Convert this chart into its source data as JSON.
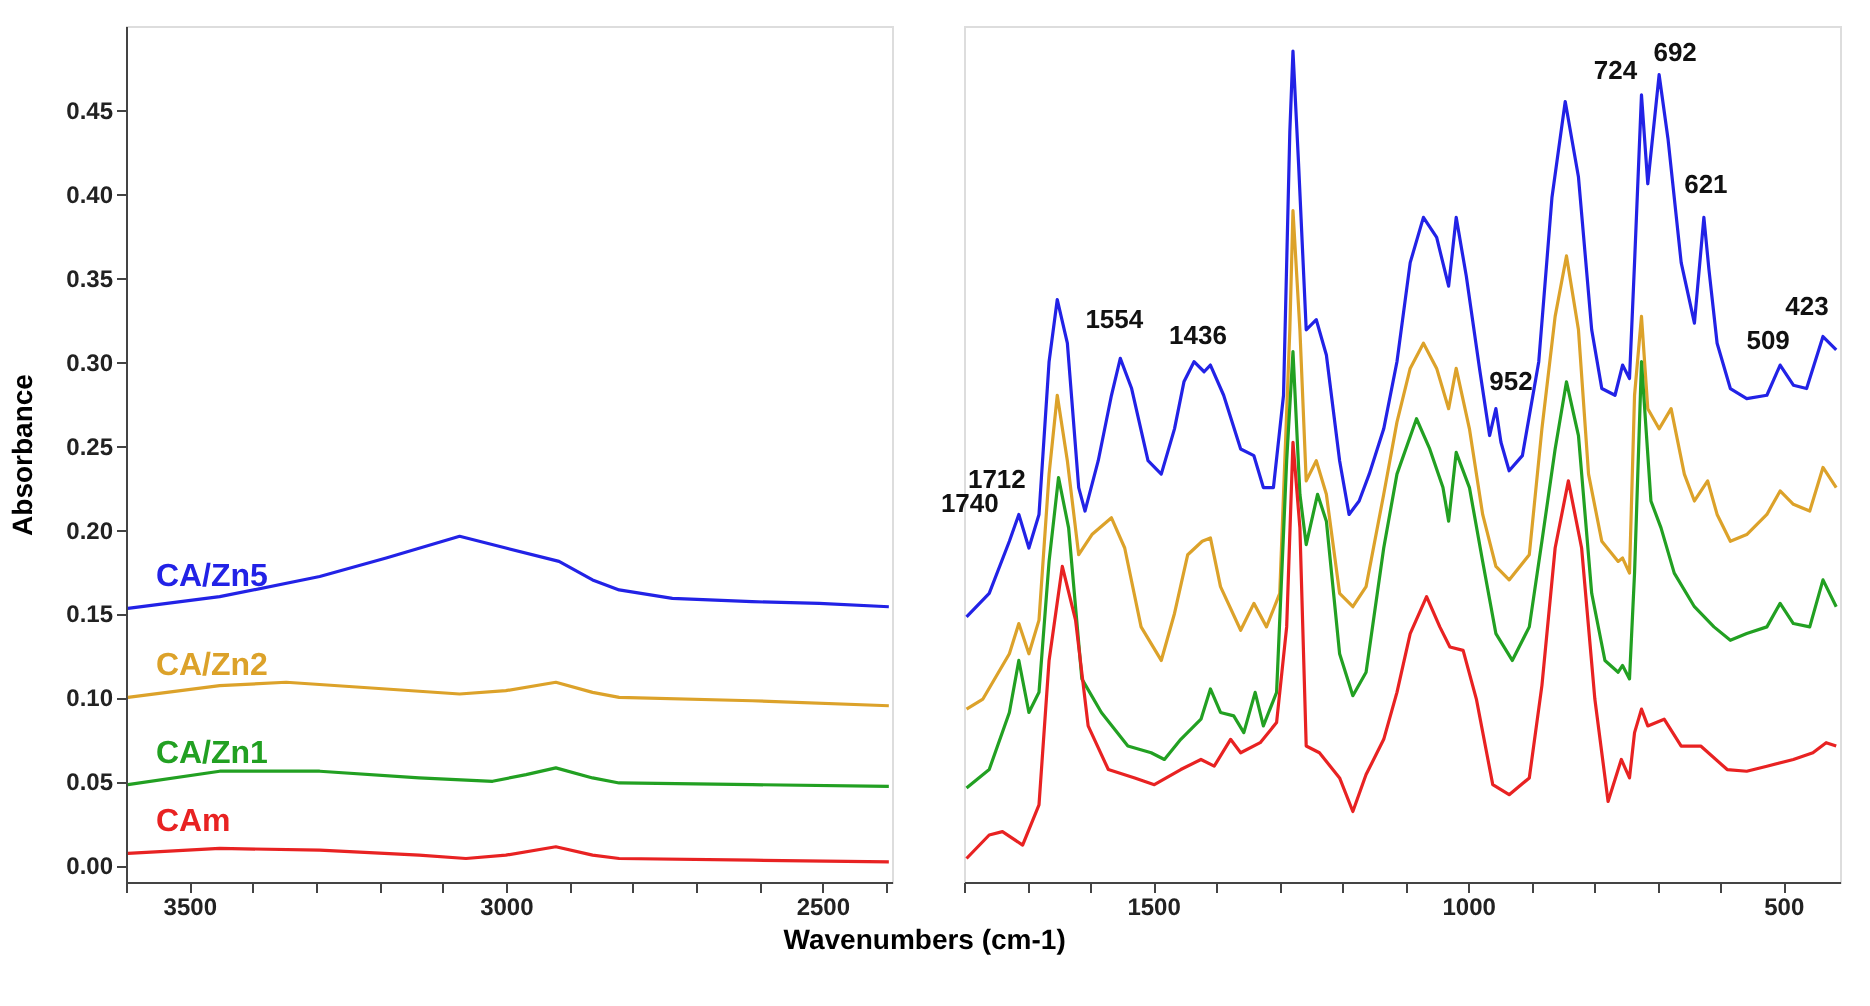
{
  "chart_data": [
    {
      "type": "line",
      "ylabel": "Absorbance",
      "xlabel": "Wavenumbers (cm-1)",
      "xlim": [
        3600,
        2390
      ],
      "xticks": [
        {
          "value": 3600,
          "label": null
        },
        {
          "value": 3500,
          "label": "3500"
        },
        {
          "value": 3400,
          "label": null
        },
        {
          "value": 3300,
          "label": null
        },
        {
          "value": 3200,
          "label": null
        },
        {
          "value": 3100,
          "label": null
        },
        {
          "value": 3000,
          "label": "3000"
        },
        {
          "value": 2900,
          "label": null
        },
        {
          "value": 2800,
          "label": null
        },
        {
          "value": 2700,
          "label": null
        },
        {
          "value": 2600,
          "label": null
        },
        {
          "value": 2500,
          "label": "2500"
        },
        {
          "value": 2400,
          "label": null
        }
      ],
      "ylim": [
        -0.01,
        0.5
      ],
      "yticks": [
        {
          "value": 0,
          "label": "0.00"
        },
        {
          "value": 0.05,
          "label": "0.05"
        },
        {
          "value": 0.1,
          "label": "0.10"
        },
        {
          "value": 0.15,
          "label": "0.15"
        },
        {
          "value": 0.2,
          "label": "0.20"
        },
        {
          "value": 0.25,
          "label": "0.25"
        },
        {
          "value": 0.3,
          "label": "0.30"
        },
        {
          "value": 0.35,
          "label": "0.35"
        },
        {
          "value": 0.4,
          "label": "0.40"
        },
        {
          "value": 0.45,
          "label": "0.45"
        }
      ],
      "grid": false,
      "legend": false,
      "series": [
        {
          "name": "CA/Zn5",
          "color": "#2222e6",
          "x": [
            3597,
            3452,
            3294,
            3189,
            3073,
            3000,
            2916,
            2863,
            2821,
            2737,
            2611,
            2505,
            2395
          ],
          "values": [
            0.153,
            0.16,
            0.172,
            0.183,
            0.196,
            0.189,
            0.181,
            0.17,
            0.164,
            0.159,
            0.157,
            0.156,
            0.154
          ]
        },
        {
          "name": "CA/Zn2",
          "color": "#dca22a",
          "x": [
            3597,
            3452,
            3347,
            3189,
            3073,
            3000,
            2921,
            2863,
            2821,
            2611,
            2395
          ],
          "values": [
            0.1,
            0.107,
            0.109,
            0.105,
            0.102,
            0.104,
            0.109,
            0.103,
            0.1,
            0.098,
            0.095
          ]
        },
        {
          "name": "CA/Zn1",
          "color": "#22a022",
          "x": [
            3597,
            3452,
            3294,
            3137,
            3021,
            2968,
            2921,
            2863,
            2821,
            2611,
            2395
          ],
          "values": [
            0.048,
            0.056,
            0.056,
            0.052,
            0.05,
            0.054,
            0.058,
            0.052,
            0.049,
            0.048,
            0.047
          ]
        },
        {
          "name": "CAm",
          "color": "#e82222",
          "x": [
            3597,
            3452,
            3294,
            3137,
            3063,
            3000,
            2921,
            2863,
            2821,
            2611,
            2395
          ],
          "values": [
            0.007,
            0.01,
            0.009,
            0.006,
            0.004,
            0.006,
            0.011,
            0.006,
            0.004,
            0.003,
            0.002
          ]
        }
      ]
    },
    {
      "type": "line",
      "tick_labels": "x",
      "xlim": [
        1800,
        410
      ],
      "xticks": [
        {
          "value": 1800,
          "label": null
        },
        {
          "value": 1700,
          "label": null
        },
        {
          "value": 1600,
          "label": null
        },
        {
          "value": 1500,
          "label": "1500"
        },
        {
          "value": 1400,
          "label": null
        },
        {
          "value": 1300,
          "label": null
        },
        {
          "value": 1200,
          "label": null
        },
        {
          "value": 1100,
          "label": null
        },
        {
          "value": 1000,
          "label": "1000"
        },
        {
          "value": 900,
          "label": null
        },
        {
          "value": 800,
          "label": null
        },
        {
          "value": 700,
          "label": null
        },
        {
          "value": 600,
          "label": null
        },
        {
          "value": 500,
          "label": "500"
        }
      ],
      "ylim": [
        -0.01,
        0.5
      ],
      "grid": false,
      "legend": false,
      "annotations": [
        {
          "text": "1740",
          "x": 1740,
          "y": 0.178
        },
        {
          "text": "1712",
          "x": 1713,
          "y": 0.209
        },
        {
          "text": "1554",
          "x": 1552,
          "y": 0.302
        },
        {
          "text": "1436",
          "x": 1435,
          "y": 0.3
        },
        {
          "text": "952",
          "x": 948,
          "y": 0.252
        },
        {
          "text": "724",
          "x": 725,
          "y": 0.459
        },
        {
          "text": "692",
          "x": 697,
          "y": 0.471
        },
        {
          "text": "621",
          "x": 626,
          "y": 0.386
        },
        {
          "text": "509",
          "x": 505,
          "y": 0.298
        },
        {
          "text": "423",
          "x": 437,
          "y": 0.315
        }
      ],
      "series": [
        {
          "color": "#2222e6",
          "x": [
            1796,
            1760,
            1728,
            1713,
            1697,
            1681,
            1665,
            1652,
            1636,
            1618,
            1608,
            1587,
            1566,
            1552,
            1534,
            1508,
            1487,
            1466,
            1451,
            1435,
            1419,
            1409,
            1388,
            1361,
            1340,
            1325,
            1309,
            1293,
            1283,
            1278,
            1269,
            1257,
            1241,
            1225,
            1204,
            1189,
            1173,
            1157,
            1134,
            1113,
            1092,
            1071,
            1050,
            1031,
            1019,
            1003,
            982,
            966,
            956,
            948,
            935,
            914,
            888,
            867,
            846,
            825,
            804,
            788,
            767,
            755,
            744,
            736,
            725,
            715,
            697,
            683,
            662,
            641,
            626,
            618,
            605,
            584,
            558,
            526,
            505,
            484,
            463,
            437,
            416
          ],
          "values": [
            0.148,
            0.162,
            0.193,
            0.209,
            0.189,
            0.209,
            0.3,
            0.337,
            0.311,
            0.225,
            0.211,
            0.241,
            0.28,
            0.302,
            0.284,
            0.241,
            0.233,
            0.26,
            0.288,
            0.3,
            0.294,
            0.298,
            0.28,
            0.248,
            0.244,
            0.225,
            0.225,
            0.28,
            0.437,
            0.485,
            0.417,
            0.319,
            0.325,
            0.304,
            0.241,
            0.209,
            0.217,
            0.233,
            0.26,
            0.3,
            0.359,
            0.386,
            0.374,
            0.345,
            0.386,
            0.351,
            0.296,
            0.256,
            0.272,
            0.252,
            0.235,
            0.244,
            0.3,
            0.398,
            0.455,
            0.41,
            0.319,
            0.284,
            0.28,
            0.298,
            0.29,
            0.359,
            0.459,
            0.406,
            0.471,
            0.433,
            0.359,
            0.323,
            0.386,
            0.355,
            0.311,
            0.284,
            0.278,
            0.28,
            0.298,
            0.286,
            0.284,
            0.315,
            0.307
          ]
        },
        {
          "color": "#dca22a",
          "x": [
            1796,
            1770,
            1728,
            1713,
            1697,
            1681,
            1665,
            1652,
            1636,
            1618,
            1597,
            1566,
            1545,
            1519,
            1487,
            1466,
            1445,
            1422,
            1409,
            1393,
            1361,
            1340,
            1320,
            1299,
            1283,
            1278,
            1267,
            1257,
            1241,
            1225,
            1204,
            1183,
            1162,
            1134,
            1113,
            1092,
            1071,
            1050,
            1031,
            1019,
            998,
            977,
            956,
            935,
            903,
            883,
            862,
            844,
            825,
            809,
            788,
            762,
            755,
            744,
            736,
            725,
            715,
            697,
            678,
            657,
            641,
            620,
            605,
            584,
            558,
            526,
            505,
            484,
            458,
            437,
            416
          ],
          "values": [
            0.093,
            0.099,
            0.126,
            0.144,
            0.126,
            0.146,
            0.233,
            0.28,
            0.241,
            0.185,
            0.197,
            0.207,
            0.189,
            0.142,
            0.122,
            0.15,
            0.185,
            0.193,
            0.195,
            0.166,
            0.14,
            0.156,
            0.142,
            0.162,
            0.319,
            0.39,
            0.319,
            0.229,
            0.241,
            0.221,
            0.162,
            0.154,
            0.166,
            0.221,
            0.264,
            0.296,
            0.311,
            0.296,
            0.272,
            0.296,
            0.26,
            0.209,
            0.178,
            0.17,
            0.185,
            0.26,
            0.327,
            0.363,
            0.319,
            0.233,
            0.193,
            0.181,
            0.183,
            0.174,
            0.28,
            0.327,
            0.272,
            0.26,
            0.272,
            0.233,
            0.217,
            0.229,
            0.209,
            0.193,
            0.197,
            0.209,
            0.223,
            0.215,
            0.211,
            0.237,
            0.225
          ]
        },
        {
          "color": "#22a022",
          "x": [
            1796,
            1760,
            1728,
            1713,
            1697,
            1681,
            1665,
            1650,
            1634,
            1613,
            1582,
            1540,
            1503,
            1482,
            1456,
            1424,
            1409,
            1393,
            1372,
            1356,
            1338,
            1325,
            1304,
            1288,
            1278,
            1267,
            1257,
            1239,
            1225,
            1204,
            1183,
            1162,
            1134,
            1113,
            1082,
            1061,
            1040,
            1031,
            1019,
            998,
            977,
            956,
            930,
            903,
            883,
            862,
            844,
            825,
            804,
            783,
            762,
            755,
            744,
            736,
            725,
            710,
            694,
            673,
            641,
            610,
            584,
            558,
            526,
            505,
            484,
            458,
            437,
            416
          ],
          "values": [
            0.046,
            0.057,
            0.091,
            0.122,
            0.091,
            0.103,
            0.181,
            0.231,
            0.201,
            0.111,
            0.091,
            0.071,
            0.067,
            0.063,
            0.075,
            0.087,
            0.105,
            0.091,
            0.089,
            0.079,
            0.103,
            0.083,
            0.103,
            0.241,
            0.306,
            0.221,
            0.191,
            0.221,
            0.205,
            0.126,
            0.101,
            0.115,
            0.189,
            0.233,
            0.266,
            0.248,
            0.225,
            0.205,
            0.246,
            0.225,
            0.181,
            0.138,
            0.122,
            0.142,
            0.193,
            0.248,
            0.288,
            0.256,
            0.162,
            0.122,
            0.115,
            0.119,
            0.111,
            0.174,
            0.3,
            0.217,
            0.201,
            0.174,
            0.154,
            0.142,
            0.134,
            0.138,
            0.142,
            0.156,
            0.144,
            0.142,
            0.17,
            0.154
          ]
        },
        {
          "color": "#e82222",
          "x": [
            1796,
            1760,
            1739,
            1707,
            1681,
            1665,
            1644,
            1623,
            1603,
            1571,
            1529,
            1498,
            1456,
            1424,
            1403,
            1377,
            1361,
            1330,
            1304,
            1288,
            1278,
            1267,
            1257,
            1236,
            1204,
            1183,
            1162,
            1134,
            1113,
            1092,
            1066,
            1045,
            1029,
            1008,
            987,
            961,
            935,
            903,
            883,
            862,
            841,
            820,
            799,
            778,
            757,
            744,
            736,
            725,
            715,
            689,
            662,
            631,
            589,
            558,
            526,
            484,
            453,
            432,
            416
          ],
          "values": [
            0.004,
            0.018,
            0.02,
            0.012,
            0.036,
            0.122,
            0.178,
            0.146,
            0.083,
            0.057,
            0.052,
            0.048,
            0.057,
            0.063,
            0.059,
            0.075,
            0.067,
            0.073,
            0.085,
            0.142,
            0.252,
            0.201,
            0.071,
            0.067,
            0.052,
            0.032,
            0.054,
            0.075,
            0.103,
            0.138,
            0.16,
            0.142,
            0.13,
            0.128,
            0.099,
            0.048,
            0.042,
            0.052,
            0.107,
            0.189,
            0.229,
            0.189,
            0.099,
            0.038,
            0.063,
            0.052,
            0.079,
            0.093,
            0.083,
            0.087,
            0.071,
            0.071,
            0.057,
            0.056,
            0.059,
            0.063,
            0.067,
            0.073,
            0.071
          ]
        }
      ]
    }
  ]
}
